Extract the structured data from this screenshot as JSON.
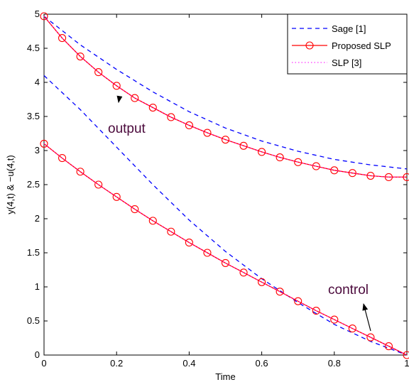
{
  "chart_data": {
    "type": "line",
    "title": "",
    "xlabel": "Time",
    "ylabel": "y(4,t) & −u(4,t)",
    "xlim": [
      0,
      1
    ],
    "ylim": [
      0,
      5
    ],
    "xticks": [
      "0",
      "0.2",
      "0.4",
      "0.6",
      "0.8",
      "1"
    ],
    "yticks": [
      "0",
      "0.5",
      "1",
      "1.5",
      "2",
      "2.5",
      "3",
      "3.5",
      "4",
      "4.5",
      "5"
    ],
    "grid": false,
    "legend_position": "top-right",
    "colors": {
      "sage": "#0000ff",
      "proposed": "#ff0000",
      "slp": "#ff00ff"
    },
    "series": [
      {
        "name": "Sage [1]",
        "style": "dashed",
        "curves": [
          {
            "x": [
              0,
              0.1,
              0.2,
              0.3,
              0.4,
              0.5,
              0.6,
              0.7,
              0.8,
              0.9,
              1.0
            ],
            "y": [
              4.97,
              4.55,
              4.19,
              3.86,
              3.57,
              3.33,
              3.14,
              2.99,
              2.87,
              2.79,
              2.73
            ]
          },
          {
            "x": [
              0,
              0.1,
              0.2,
              0.3,
              0.4,
              0.5,
              0.6,
              0.7,
              0.8,
              0.9,
              1.0
            ],
            "y": [
              4.1,
              3.6,
              3.05,
              2.5,
              1.98,
              1.52,
              1.12,
              0.77,
              0.45,
              0.2,
              0.0
            ]
          }
        ]
      },
      {
        "name": "Proposed SLP",
        "style": "solid-circle",
        "curves": [
          {
            "x": [
              0,
              0.05,
              0.1,
              0.15,
              0.2,
              0.25,
              0.3,
              0.35,
              0.4,
              0.45,
              0.5,
              0.55,
              0.6,
              0.65,
              0.7,
              0.75,
              0.8,
              0.85,
              0.9,
              0.95,
              1.0
            ],
            "y": [
              4.97,
              4.65,
              4.38,
              4.15,
              3.95,
              3.77,
              3.63,
              3.49,
              3.37,
              3.26,
              3.16,
              3.07,
              2.98,
              2.9,
              2.83,
              2.77,
              2.71,
              2.67,
              2.63,
              2.61,
              2.61
            ]
          },
          {
            "x": [
              0,
              0.05,
              0.1,
              0.15,
              0.2,
              0.25,
              0.3,
              0.35,
              0.4,
              0.45,
              0.5,
              0.55,
              0.6,
              0.65,
              0.7,
              0.75,
              0.8,
              0.85,
              0.9,
              0.95,
              1.0
            ],
            "y": [
              3.1,
              2.89,
              2.69,
              2.5,
              2.32,
              2.14,
              1.97,
              1.81,
              1.65,
              1.5,
              1.35,
              1.21,
              1.07,
              0.93,
              0.79,
              0.65,
              0.52,
              0.39,
              0.26,
              0.13,
              0.0
            ]
          }
        ]
      },
      {
        "name": "SLP [3]",
        "style": "dotted",
        "curves": [
          {
            "x": [
              0,
              0.05,
              0.1,
              0.15,
              0.2,
              0.25,
              0.3,
              0.35,
              0.4,
              0.45,
              0.5,
              0.55,
              0.6,
              0.65,
              0.7,
              0.75,
              0.8,
              0.85,
              0.9,
              0.95,
              1.0
            ],
            "y": [
              4.97,
              4.65,
              4.38,
              4.15,
              3.95,
              3.77,
              3.63,
              3.49,
              3.37,
              3.26,
              3.16,
              3.07,
              2.98,
              2.9,
              2.83,
              2.77,
              2.71,
              2.67,
              2.63,
              2.61,
              2.61
            ]
          },
          {
            "x": [
              0,
              0.05,
              0.1,
              0.15,
              0.2,
              0.25,
              0.3,
              0.35,
              0.4,
              0.45,
              0.5,
              0.55,
              0.6,
              0.65,
              0.7,
              0.75,
              0.8,
              0.85,
              0.9,
              0.95,
              1.0
            ],
            "y": [
              3.1,
              2.89,
              2.69,
              2.5,
              2.32,
              2.14,
              1.97,
              1.81,
              1.65,
              1.5,
              1.35,
              1.21,
              1.07,
              0.93,
              0.79,
              0.65,
              0.52,
              0.39,
              0.26,
              0.13,
              0.0
            ]
          }
        ]
      }
    ],
    "annotations": [
      {
        "text": "output",
        "arrow_to": [
          0.225,
          3.78
        ]
      },
      {
        "text": "control",
        "arrow_to": [
          0.895,
          0.28
        ]
      }
    ]
  }
}
